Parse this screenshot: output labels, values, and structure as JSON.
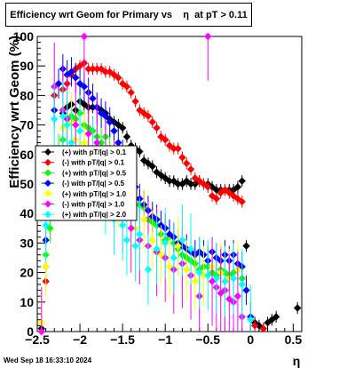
{
  "chart_data": {
    "type": "scatter",
    "title": "Efficiency wrt Geom for Primary vs    η  at pT > 0.11",
    "xlabel": "η",
    "ylabel": "Efficiency wrt Geom (%)",
    "xlim": [
      -2.5,
      0.6
    ],
    "ylim": [
      0,
      100
    ],
    "x_ticks": [
      -2.5,
      -2,
      -1.5,
      -1,
      -0.5,
      0,
      0.5
    ],
    "x_tick_labels": [
      "−2.5",
      "−2",
      "−1.5",
      "−1",
      "−0.5",
      "0",
      "0.5"
    ],
    "y_ticks": [
      0,
      10,
      20,
      30,
      40,
      50,
      60,
      70,
      80,
      90,
      100
    ],
    "y_tick_labels": [
      "0",
      "10",
      "20",
      "30",
      "40",
      "50",
      "60",
      "70",
      "80",
      "90",
      "100"
    ],
    "grid": false,
    "legend_position": "left-middle",
    "timestamp": "Wed Sep 18 16:33:10 2024",
    "series": [
      {
        "name": "(+) with pT/|q| > 0.1",
        "color": "#000000",
        "err": 2,
        "points": [
          [
            -2.45,
            1
          ],
          [
            -2.4,
            22
          ],
          [
            -2.35,
            43
          ],
          [
            -2.25,
            58
          ],
          [
            -2.2,
            74
          ],
          [
            -2.15,
            76
          ],
          [
            -2.1,
            77
          ],
          [
            -2.05,
            75
          ],
          [
            -2.0,
            78
          ],
          [
            -1.95,
            77
          ],
          [
            -1.9,
            76
          ],
          [
            -1.85,
            76
          ],
          [
            -1.8,
            76
          ],
          [
            -1.75,
            75
          ],
          [
            -1.7,
            74
          ],
          [
            -1.65,
            72
          ],
          [
            -1.6,
            71
          ],
          [
            -1.55,
            70
          ],
          [
            -1.5,
            69
          ],
          [
            -1.45,
            66
          ],
          [
            -1.4,
            63
          ],
          [
            -1.35,
            62
          ],
          [
            -1.3,
            61
          ],
          [
            -1.25,
            58
          ],
          [
            -1.2,
            57
          ],
          [
            -1.15,
            56
          ],
          [
            -1.1,
            54
          ],
          [
            -1.05,
            53
          ],
          [
            -1.0,
            52
          ],
          [
            -0.95,
            51
          ],
          [
            -0.9,
            51
          ],
          [
            -0.85,
            50
          ],
          [
            -0.8,
            50
          ],
          [
            -0.75,
            51
          ],
          [
            -0.7,
            50
          ],
          [
            -0.65,
            50
          ],
          [
            -0.6,
            51
          ],
          [
            -0.5,
            50
          ],
          [
            -0.45,
            49
          ],
          [
            -0.4,
            48
          ],
          [
            -0.35,
            48
          ],
          [
            -0.3,
            48
          ],
          [
            -0.25,
            48
          ],
          [
            -0.2,
            48
          ],
          [
            -0.15,
            49
          ],
          [
            -0.1,
            51
          ],
          [
            -0.05,
            29
          ],
          [
            0.05,
            3
          ],
          [
            0.1,
            2
          ],
          [
            0.15,
            1
          ],
          [
            0.2,
            3
          ],
          [
            0.25,
            4
          ],
          [
            0.3,
            5
          ],
          [
            0.55,
            8
          ]
        ]
      },
      {
        "name": "(-) with pT/|q| > 0.1",
        "color": "#ff0000",
        "err": 2,
        "points": [
          [
            -2.4,
            17
          ],
          [
            -2.3,
            80
          ],
          [
            -2.2,
            82
          ],
          [
            -2.15,
            84
          ],
          [
            -2.1,
            87
          ],
          [
            -2.05,
            89
          ],
          [
            -2.0,
            90
          ],
          [
            -1.95,
            91
          ],
          [
            -1.9,
            89
          ],
          [
            -1.85,
            89
          ],
          [
            -1.8,
            89
          ],
          [
            -1.75,
            89
          ],
          [
            -1.7,
            88
          ],
          [
            -1.65,
            88
          ],
          [
            -1.6,
            87
          ],
          [
            -1.55,
            86
          ],
          [
            -1.5,
            84
          ],
          [
            -1.45,
            83
          ],
          [
            -1.4,
            81
          ],
          [
            -1.35,
            78
          ],
          [
            -1.3,
            75
          ],
          [
            -1.25,
            74
          ],
          [
            -1.2,
            73
          ],
          [
            -1.15,
            71
          ],
          [
            -1.1,
            69
          ],
          [
            -1.05,
            66
          ],
          [
            -1.0,
            65
          ],
          [
            -0.95,
            63
          ],
          [
            -0.9,
            62
          ],
          [
            -0.85,
            62
          ],
          [
            -0.8,
            59
          ],
          [
            -0.75,
            57
          ],
          [
            -0.7,
            55
          ],
          [
            -0.65,
            52
          ],
          [
            -0.6,
            51
          ],
          [
            -0.55,
            50
          ],
          [
            -0.5,
            49
          ],
          [
            -0.45,
            46
          ],
          [
            -0.4,
            45
          ],
          [
            -0.35,
            47
          ],
          [
            -0.3,
            48
          ],
          [
            -0.25,
            47
          ],
          [
            -0.2,
            46
          ],
          [
            -0.15,
            45
          ],
          [
            -0.1,
            44
          ],
          [
            0.05,
            2
          ],
          [
            0.15,
            1
          ]
        ]
      },
      {
        "name": "(+) with pT/|q| > 0.5",
        "color": "#00ff00",
        "err": 5,
        "points": [
          [
            -2.4,
            26
          ],
          [
            -2.35,
            35
          ],
          [
            -2.25,
            62
          ],
          [
            -2.2,
            65
          ],
          [
            -2.15,
            70
          ],
          [
            -2.1,
            73
          ],
          [
            -2.05,
            72
          ],
          [
            -2.0,
            74
          ],
          [
            -1.95,
            70
          ],
          [
            -1.9,
            69
          ],
          [
            -1.85,
            68
          ],
          [
            -1.8,
            66
          ],
          [
            -1.75,
            64
          ],
          [
            -1.7,
            66
          ],
          [
            -1.65,
            62
          ],
          [
            -1.6,
            60
          ],
          [
            -1.55,
            57
          ],
          [
            -1.5,
            53
          ],
          [
            -1.45,
            49
          ],
          [
            -1.4,
            47
          ],
          [
            -1.35,
            45
          ],
          [
            -1.3,
            43
          ],
          [
            -1.25,
            42
          ],
          [
            -1.2,
            38
          ],
          [
            -1.15,
            37
          ],
          [
            -1.1,
            36
          ],
          [
            -1.05,
            33
          ],
          [
            -1.0,
            31
          ],
          [
            -0.95,
            32
          ],
          [
            -0.9,
            30
          ],
          [
            -0.85,
            28
          ],
          [
            -0.8,
            26
          ],
          [
            -0.75,
            25
          ],
          [
            -0.7,
            24
          ],
          [
            -0.65,
            23
          ],
          [
            -0.6,
            21
          ],
          [
            -0.55,
            22
          ],
          [
            -0.5,
            22
          ],
          [
            -0.45,
            20
          ],
          [
            -0.4,
            19
          ],
          [
            -0.35,
            21
          ],
          [
            -0.3,
            20
          ],
          [
            -0.25,
            19
          ],
          [
            -0.2,
            20
          ],
          [
            -0.15,
            21
          ],
          [
            -0.1,
            18
          ]
        ]
      },
      {
        "name": "(-) with pT/|q| > 0.5",
        "color": "#0000ff",
        "err": 5,
        "points": [
          [
            -2.4,
            31
          ],
          [
            -2.3,
            75
          ],
          [
            -2.25,
            84
          ],
          [
            -2.2,
            89
          ],
          [
            -2.15,
            87
          ],
          [
            -2.1,
            88
          ],
          [
            -2.05,
            86
          ],
          [
            -2.0,
            84
          ],
          [
            -1.95,
            83
          ],
          [
            -1.9,
            81
          ],
          [
            -1.85,
            79
          ],
          [
            -1.8,
            76
          ],
          [
            -1.75,
            74
          ],
          [
            -1.7,
            73
          ],
          [
            -1.65,
            71
          ],
          [
            -1.6,
            68
          ],
          [
            -1.55,
            64
          ],
          [
            -1.5,
            60
          ],
          [
            -1.45,
            56
          ],
          [
            -1.4,
            52
          ],
          [
            -1.35,
            49
          ],
          [
            -1.3,
            45
          ],
          [
            -1.25,
            43
          ],
          [
            -1.2,
            41
          ],
          [
            -1.15,
            39
          ],
          [
            -1.1,
            38
          ],
          [
            -1.05,
            36
          ],
          [
            -1.0,
            35
          ],
          [
            -0.95,
            33
          ],
          [
            -0.9,
            32
          ],
          [
            -0.85,
            30
          ],
          [
            -0.8,
            29
          ],
          [
            -0.75,
            28
          ],
          [
            -0.7,
            27
          ],
          [
            -0.65,
            26
          ],
          [
            -0.6,
            27
          ],
          [
            -0.55,
            26
          ],
          [
            -0.5,
            24
          ],
          [
            -0.45,
            27
          ],
          [
            -0.4,
            25
          ],
          [
            -0.35,
            24
          ],
          [
            -0.3,
            26
          ],
          [
            -0.25,
            24
          ],
          [
            -0.2,
            26
          ],
          [
            -0.15,
            23
          ],
          [
            -0.1,
            22
          ],
          [
            -0.05,
            14
          ],
          [
            0.0,
            5
          ]
        ]
      },
      {
        "name": "(+) with pT/|q| > 1.0",
        "color": "#ffff00",
        "err": 10,
        "points": [
          [
            -2.45,
            3
          ],
          [
            -2.4,
            22
          ],
          [
            -2.2,
            69
          ],
          [
            -2.15,
            70
          ],
          [
            -2.1,
            71
          ],
          [
            -2.05,
            65
          ],
          [
            -1.95,
            64
          ],
          [
            -1.85,
            62
          ],
          [
            -1.7,
            51
          ],
          [
            -1.55,
            45
          ],
          [
            -1.45,
            40
          ],
          [
            -1.35,
            35
          ],
          [
            -1.25,
            38
          ],
          [
            -1.15,
            31
          ],
          [
            -1.05,
            26
          ],
          [
            -0.95,
            22
          ],
          [
            -0.85,
            29
          ],
          [
            -0.75,
            21
          ],
          [
            -0.65,
            17
          ],
          [
            -0.55,
            19
          ],
          [
            -0.45,
            22
          ],
          [
            -0.35,
            20
          ],
          [
            -0.25,
            18
          ],
          [
            -0.15,
            21
          ]
        ]
      },
      {
        "name": "(-) with pT/|q| > 1.0",
        "color": "#ff00ff",
        "err": 15,
        "points": [
          [
            -2.45,
            0
          ],
          [
            -2.3,
            83
          ],
          [
            -2.2,
            75
          ],
          [
            -2.15,
            72
          ],
          [
            -2.05,
            70
          ],
          [
            -1.95,
            100
          ],
          [
            -1.9,
            67
          ],
          [
            -1.8,
            64
          ],
          [
            -1.7,
            56
          ],
          [
            -1.6,
            50
          ],
          [
            -1.5,
            42
          ],
          [
            -1.4,
            35
          ],
          [
            -1.3,
            31
          ],
          [
            -1.2,
            29
          ],
          [
            -1.1,
            27
          ],
          [
            -1.0,
            25
          ],
          [
            -0.9,
            21
          ],
          [
            -0.8,
            23
          ],
          [
            -0.7,
            19
          ],
          [
            -0.6,
            12
          ],
          [
            -0.5,
            100
          ],
          [
            -0.45,
            17
          ],
          [
            -0.4,
            15
          ],
          [
            -0.35,
            13
          ],
          [
            -0.3,
            14
          ],
          [
            -0.25,
            11
          ],
          [
            -0.2,
            10
          ],
          [
            -0.15,
            12
          ],
          [
            -0.1,
            5
          ]
        ]
      },
      {
        "name": "(+) with pT/|q| > 2.0",
        "color": "#00ffff",
        "err": 12,
        "points": [
          [
            -2.4,
            36
          ],
          [
            -2.3,
            72
          ],
          [
            -2.2,
            73
          ],
          [
            -2.15,
            70
          ],
          [
            -2.1,
            64
          ],
          [
            -2.0,
            68
          ],
          [
            -1.85,
            60
          ],
          [
            -1.7,
            45
          ],
          [
            -1.6,
            38
          ],
          [
            -1.5,
            36
          ],
          [
            -1.45,
            31
          ],
          [
            -1.35,
            29
          ],
          [
            -1.3,
            33
          ],
          [
            -1.2,
            21
          ],
          [
            -1.1,
            28
          ],
          [
            -1.0,
            30
          ],
          [
            -0.9,
            25
          ],
          [
            -0.8,
            31
          ],
          [
            -0.7,
            28
          ],
          [
            -0.6,
            20
          ],
          [
            -0.5,
            19
          ],
          [
            -0.4,
            18
          ],
          [
            -0.3,
            17
          ],
          [
            -0.2,
            18
          ],
          [
            -0.1,
            16
          ],
          [
            0.0,
            4
          ]
        ]
      }
    ]
  }
}
